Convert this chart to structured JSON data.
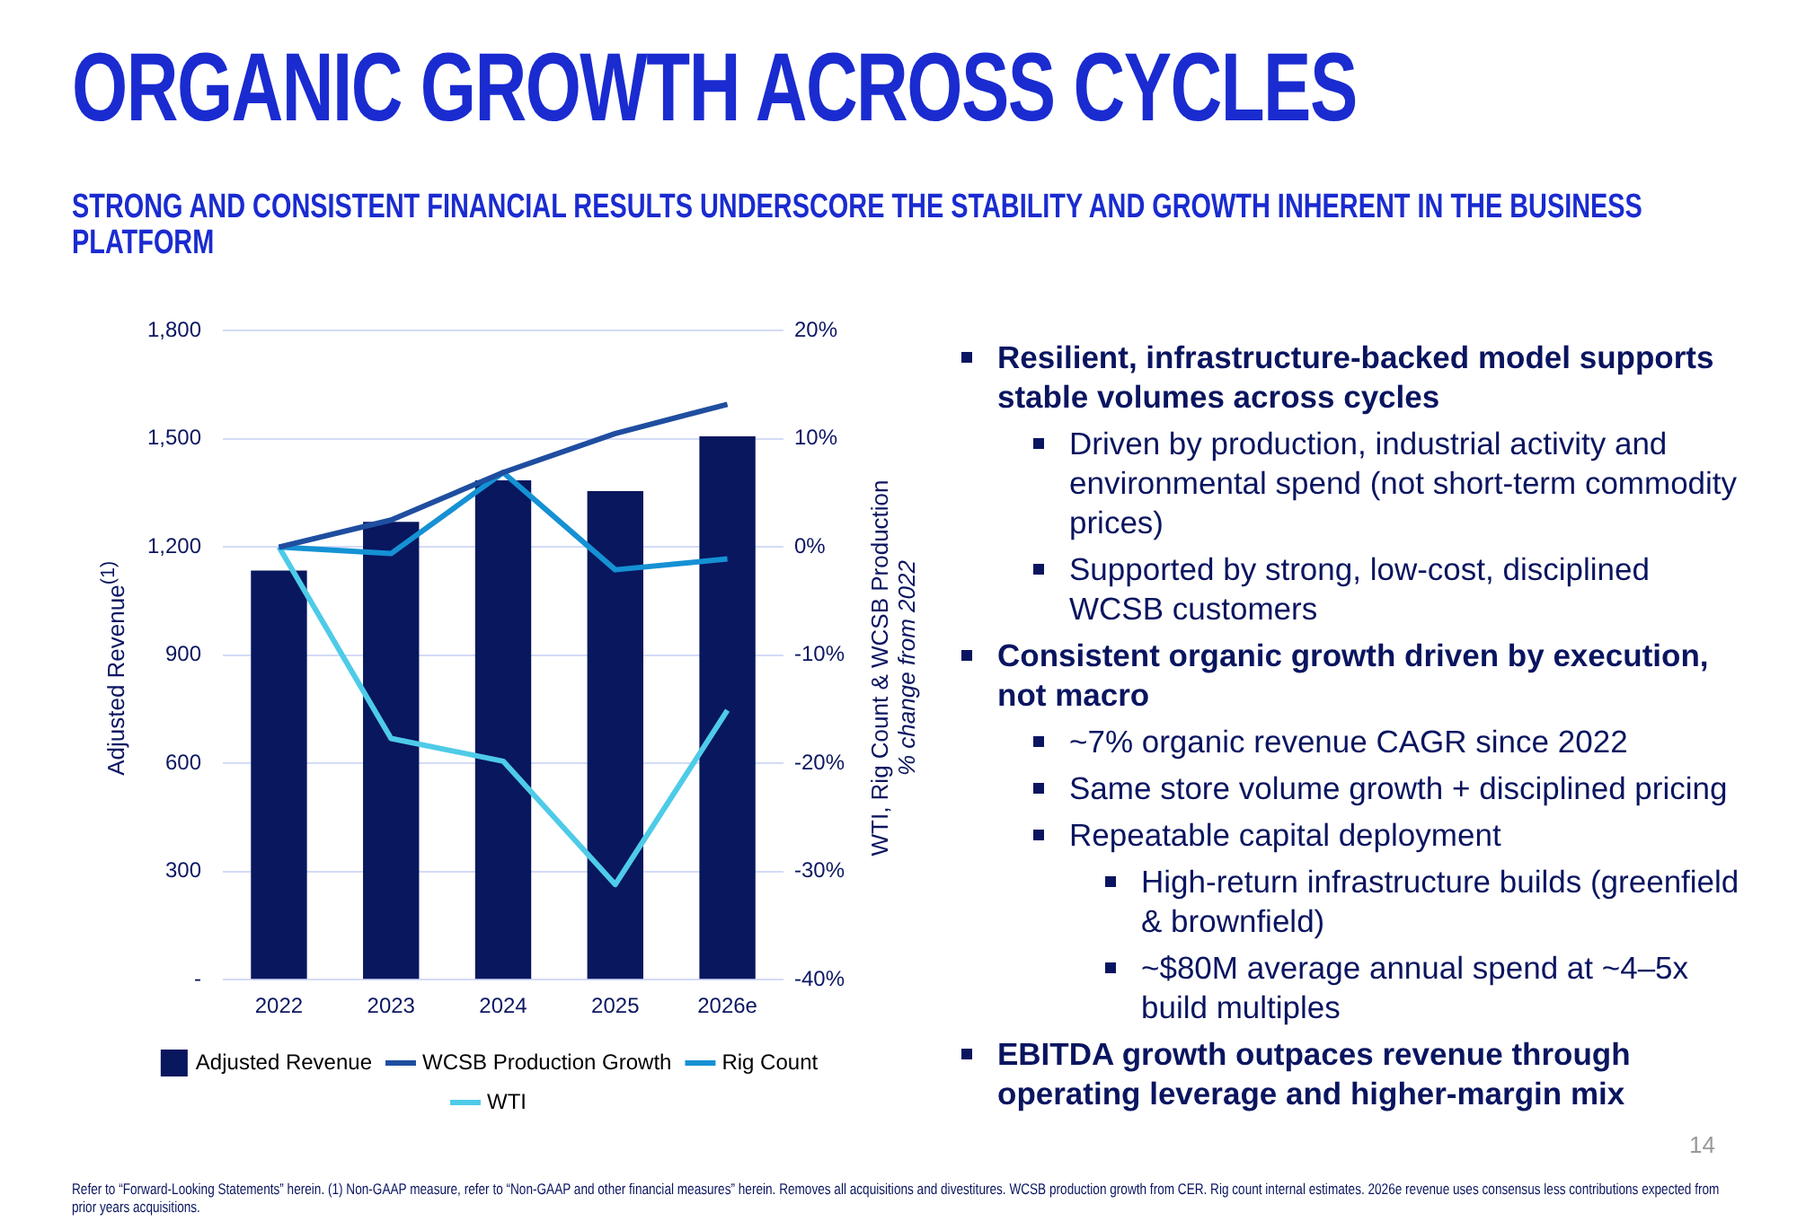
{
  "chart_data": {
    "type": "bar",
    "title": "ORGANIC GROWTH ACROSS CYCLES",
    "subtitle": "STRONG AND CONSISTENT FINANCIAL RESULTS UNDERSCORE THE STABILITY AND GROWTH INHERENT IN THE BUSINESS PLATFORM",
    "ylabel": "Adjusted Revenue$^{(1)}$",
    "y2label": "WTI, Rig Count & WCSB Production\n% change from 2022",
    "categories": [
      "2022",
      "2023",
      "2024",
      "2025",
      "2026e"
    ],
    "series": [
      {
        "name": "Adjusted Revenue",
        "color": "#08175e",
        "values": [
          1135,
          1270,
          1385,
          1355,
          1507
        ]
      },
      {
        "name": "WCSB Production Growth",
        "type": "line",
        "axis": "y2",
        "color": "#1f4ea0",
        "values": [
          0,
          2.5,
          6.9,
          10.5,
          13.2
        ]
      },
      {
        "name": "Rig Count",
        "type": "line",
        "axis": "y2",
        "color": "#1591d4",
        "values": [
          0,
          -0.6,
          6.9,
          -2.1,
          -1.1
        ]
      },
      {
        "name": "WTI",
        "type": "line",
        "axis": "y2",
        "color": "#4ecbe8",
        "values": [
          0,
          -17.7,
          -19.8,
          -31.2,
          -15.1
        ]
      }
    ],
    "ylim": [
      0,
      1800
    ],
    "yticks": [
      {
        "value": 0,
        "label": "-"
      },
      {
        "value": 300,
        "label": "300"
      },
      {
        "value": 600,
        "label": "600"
      },
      {
        "value": 900,
        "label": "900"
      },
      {
        "value": 1200,
        "label": "1,200"
      },
      {
        "value": 1500,
        "label": "1,500"
      },
      {
        "value": 1800,
        "label": "1,800"
      }
    ],
    "y2lim": [
      -40,
      20
    ],
    "y2ticks": [
      {
        "value": -40,
        "label": "-40%"
      },
      {
        "value": -30,
        "label": "-30%"
      },
      {
        "value": -20,
        "label": "-20%"
      },
      {
        "value": -10,
        "label": "-10%"
      },
      {
        "value": 0,
        "label": "0%"
      },
      {
        "value": 10,
        "label": "10%"
      },
      {
        "value": 20,
        "label": "20%"
      }
    ],
    "grid": "y",
    "legend": "bottom",
    "marker": "none",
    "line_style": "solid",
    "annotations": [
      "Resilient, infrastructure-backed model supports stable volumes across cycles",
      "Driven by production, industrial activity and environmental spend (not short-term commodity prices)",
      "Supported by strong, low-cost, disciplined WCSB customers",
      "Consistent organic growth driven by execution, not macro",
      "~7% organic revenue CAGR since 2022",
      "Same store volume growth + disciplined pricing",
      "Repeatable capital deployment",
      "High-return infrastructure builds (greenfield & brownfield)",
      "~$80M average annual spend at ~4–5x build multiples",
      "EBITDA growth outpaces revenue through operating leverage and higher-margin mix",
      "Refer to “Forward-Looking Statements” herein. (1) Non-GAAP measure, refer to “Non-GAAP and other financial measures” herein. Removes all acquisitions and divestitures. WCSB production growth from CER. Rig count internal estimates. 2026e revenue uses consensus less contributions expected from prior years acquisitions.",
      "14"
    ]
  }
}
